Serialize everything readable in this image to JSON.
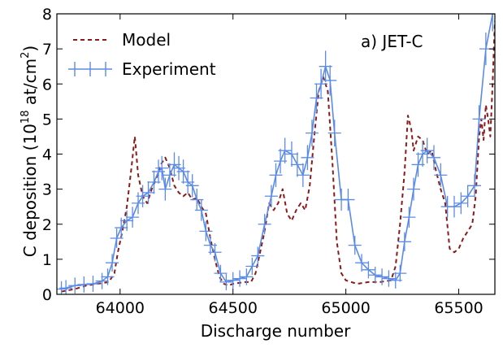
{
  "chart_data": {
    "type": "line",
    "annotation": "a) JET-C",
    "xlabel": "Discharge number",
    "ylabel_main": "C deposition (10",
    "ylabel_exp": "18",
    "ylabel_unit": " at/cm",
    "ylabel_unit_exp": "2",
    "ylabel_close": ")",
    "xlim": [
      63720,
      65660
    ],
    "ylim": [
      0,
      8
    ],
    "x_ticks": [
      64000,
      64500,
      65000,
      65500
    ],
    "y_ticks": [
      0,
      1,
      2,
      3,
      4,
      5,
      6,
      7,
      8
    ],
    "grid": false,
    "legend_position": "top-left",
    "series": [
      {
        "name": "Model",
        "style": "dashed",
        "color": "#8b1a1a",
        "points": [
          [
            63740,
            0.08
          ],
          [
            63800,
            0.15
          ],
          [
            63850,
            0.25
          ],
          [
            63900,
            0.3
          ],
          [
            63950,
            0.35
          ],
          [
            63975,
            0.6
          ],
          [
            63990,
            1.2
          ],
          [
            64010,
            1.8
          ],
          [
            64030,
            2.5
          ],
          [
            64050,
            3.6
          ],
          [
            64065,
            4.5
          ],
          [
            64080,
            3.4
          ],
          [
            64100,
            2.8
          ],
          [
            64120,
            2.6
          ],
          [
            64140,
            3.0
          ],
          [
            64160,
            3.3
          ],
          [
            64180,
            3.7
          ],
          [
            64200,
            3.9
          ],
          [
            64220,
            3.6
          ],
          [
            64240,
            3.1
          ],
          [
            64260,
            2.9
          ],
          [
            64280,
            2.8
          ],
          [
            64300,
            2.9
          ],
          [
            64320,
            2.7
          ],
          [
            64340,
            2.75
          ],
          [
            64360,
            2.5
          ],
          [
            64380,
            2.3
          ],
          [
            64400,
            1.6
          ],
          [
            64420,
            1.0
          ],
          [
            64440,
            0.5
          ],
          [
            64460,
            0.3
          ],
          [
            64480,
            0.25
          ],
          [
            64500,
            0.3
          ],
          [
            64550,
            0.35
          ],
          [
            64580,
            0.35
          ],
          [
            64600,
            0.6
          ],
          [
            64620,
            1.2
          ],
          [
            64640,
            1.8
          ],
          [
            64660,
            2.6
          ],
          [
            64680,
            2.4
          ],
          [
            64700,
            2.6
          ],
          [
            64720,
            3.0
          ],
          [
            64740,
            2.3
          ],
          [
            64760,
            2.1
          ],
          [
            64780,
            2.4
          ],
          [
            64800,
            2.6
          ],
          [
            64820,
            2.4
          ],
          [
            64840,
            3.1
          ],
          [
            64860,
            4.5
          ],
          [
            64880,
            5.8
          ],
          [
            64900,
            6.2
          ],
          [
            64920,
            5.8
          ],
          [
            64940,
            3.8
          ],
          [
            64960,
            1.5
          ],
          [
            64980,
            0.6
          ],
          [
            65000,
            0.4
          ],
          [
            65050,
            0.3
          ],
          [
            65100,
            0.35
          ],
          [
            65150,
            0.35
          ],
          [
            65200,
            0.4
          ],
          [
            65220,
            0.8
          ],
          [
            65240,
            2.0
          ],
          [
            65260,
            3.5
          ],
          [
            65275,
            5.1
          ],
          [
            65290,
            4.7
          ],
          [
            65300,
            4.1
          ],
          [
            65320,
            4.5
          ],
          [
            65340,
            4.4
          ],
          [
            65360,
            4.0
          ],
          [
            65380,
            4.1
          ],
          [
            65400,
            3.5
          ],
          [
            65420,
            3.0
          ],
          [
            65440,
            2.6
          ],
          [
            65460,
            1.3
          ],
          [
            65480,
            1.2
          ],
          [
            65500,
            1.3
          ],
          [
            65520,
            1.6
          ],
          [
            65540,
            1.8
          ],
          [
            65560,
            2.0
          ],
          [
            65575,
            2.8
          ],
          [
            65590,
            4.5
          ],
          [
            65600,
            5.0
          ],
          [
            65610,
            4.4
          ],
          [
            65620,
            5.4
          ],
          [
            65630,
            5.0
          ],
          [
            65640,
            4.5
          ],
          [
            65650,
            6.0
          ],
          [
            65660,
            7.8
          ]
        ]
      },
      {
        "name": "Experiment",
        "style": "solid-errorbars",
        "color": "#5b8be8",
        "points": [
          [
            63740,
            0.15
          ],
          [
            63760,
            0.18
          ],
          [
            63800,
            0.25
          ],
          [
            63840,
            0.28
          ],
          [
            63880,
            0.3
          ],
          [
            63920,
            0.38
          ],
          [
            63945,
            0.5
          ],
          [
            63965,
            0.9
          ],
          [
            63985,
            1.6
          ],
          [
            64005,
            1.9
          ],
          [
            64030,
            2.1
          ],
          [
            64055,
            2.2
          ],
          [
            64080,
            2.6
          ],
          [
            64100,
            2.8
          ],
          [
            64125,
            2.9
          ],
          [
            64150,
            3.2
          ],
          [
            64170,
            3.5
          ],
          [
            64185,
            3.6
          ],
          [
            64200,
            3.0
          ],
          [
            64220,
            3.4
          ],
          [
            64240,
            3.7
          ],
          [
            64260,
            3.6
          ],
          [
            64280,
            3.5
          ],
          [
            64300,
            3.2
          ],
          [
            64320,
            3.1
          ],
          [
            64340,
            2.7
          ],
          [
            64360,
            2.4
          ],
          [
            64380,
            1.8
          ],
          [
            64400,
            1.4
          ],
          [
            64420,
            1.2
          ],
          [
            64445,
            0.6
          ],
          [
            64470,
            0.35
          ],
          [
            64500,
            0.4
          ],
          [
            64530,
            0.45
          ],
          [
            64560,
            0.5
          ],
          [
            64585,
            0.8
          ],
          [
            64610,
            1.1
          ],
          [
            64640,
            2.0
          ],
          [
            64670,
            2.8
          ],
          [
            64690,
            3.4
          ],
          [
            64710,
            3.8
          ],
          [
            64730,
            4.1
          ],
          [
            64760,
            4.0
          ],
          [
            64785,
            3.7
          ],
          [
            64810,
            3.4
          ],
          [
            64830,
            3.9
          ],
          [
            64850,
            4.6
          ],
          [
            64870,
            5.6
          ],
          [
            64890,
            6.0
          ],
          [
            64910,
            6.5
          ],
          [
            64930,
            6.1
          ],
          [
            64950,
            4.6
          ],
          [
            64980,
            2.7
          ],
          [
            65010,
            2.7
          ],
          [
            65040,
            1.4
          ],
          [
            65070,
            0.9
          ],
          [
            65100,
            0.7
          ],
          [
            65130,
            0.55
          ],
          [
            65160,
            0.5
          ],
          [
            65190,
            0.45
          ],
          [
            65220,
            0.4
          ],
          [
            65240,
            0.6
          ],
          [
            65260,
            1.5
          ],
          [
            65280,
            2.2
          ],
          [
            65300,
            3.0
          ],
          [
            65320,
            3.7
          ],
          [
            65340,
            4.0
          ],
          [
            65360,
            4.1
          ],
          [
            65390,
            3.9
          ],
          [
            65420,
            3.4
          ],
          [
            65450,
            2.5
          ],
          [
            65480,
            2.5
          ],
          [
            65510,
            2.6
          ],
          [
            65540,
            2.8
          ],
          [
            65570,
            3.1
          ],
          [
            65590,
            5.0
          ],
          [
            65620,
            7.0
          ],
          [
            65650,
            8.0
          ]
        ]
      }
    ]
  }
}
